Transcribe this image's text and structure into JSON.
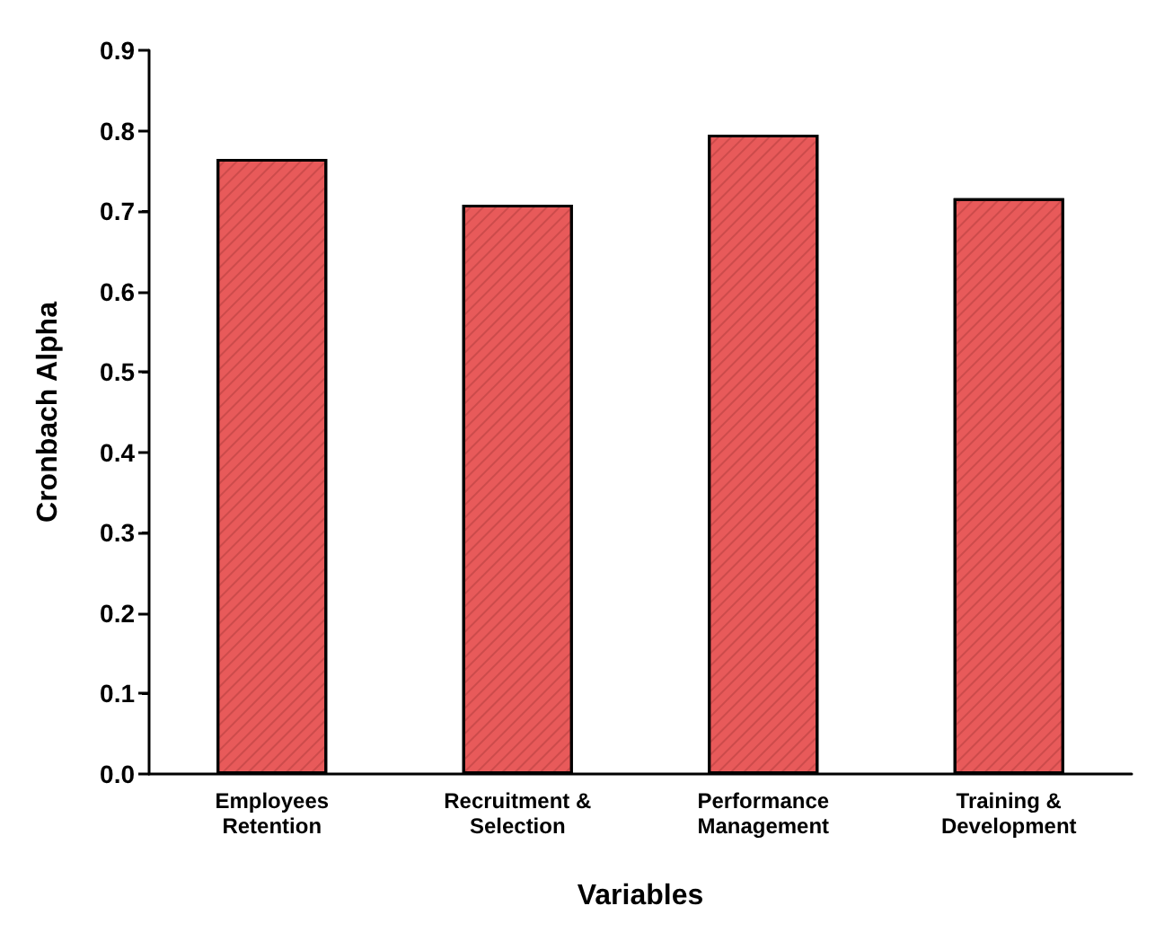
{
  "chart_data": {
    "type": "bar",
    "xlabel": "Variables",
    "ylabel": "Cronbach Alpha",
    "categories": [
      "Employees\nRetention",
      "Recruitment &\nSelection",
      "Performance\nManagement",
      "Training &\nDevelopment"
    ],
    "values": [
      0.765,
      0.708,
      0.795,
      0.716
    ],
    "color": "#e85a5a",
    "ylim": [
      0,
      0.9
    ],
    "yticks": [
      {
        "value": 0,
        "label": "0.0"
      },
      {
        "value": 0.1,
        "label": "0.1"
      },
      {
        "value": 0.2,
        "label": "0.2"
      },
      {
        "value": 0.3,
        "label": "0.3"
      },
      {
        "value": 0.4,
        "label": "0.4"
      },
      {
        "value": 0.5,
        "label": "0.5"
      },
      {
        "value": 0.6,
        "label": "0.6"
      },
      {
        "value": 0.7,
        "label": "0.7"
      },
      {
        "value": 0.8,
        "label": "0.8"
      },
      {
        "value": 0.9,
        "label": "0.9"
      }
    ],
    "grid": false
  }
}
